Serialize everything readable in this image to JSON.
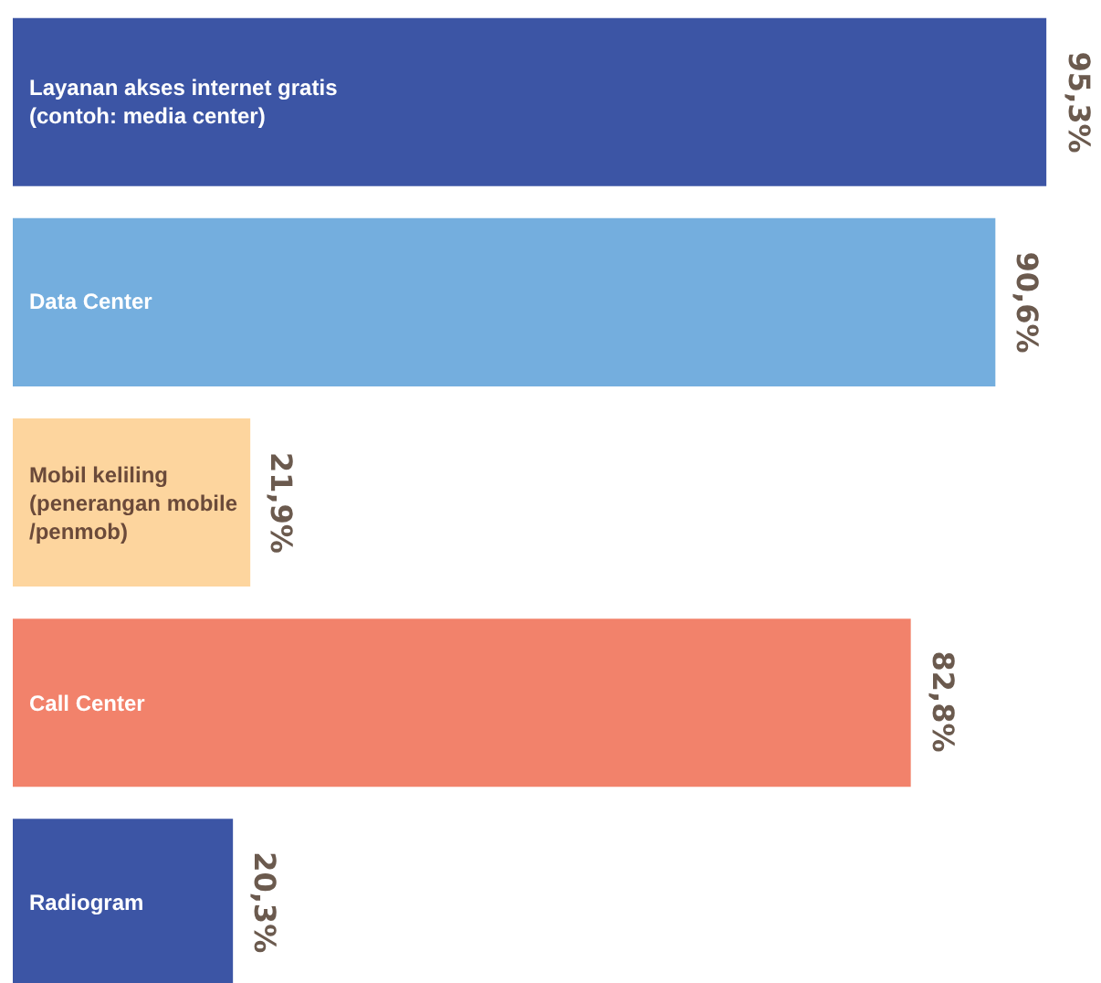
{
  "chart_data": {
    "type": "bar",
    "orientation": "horizontal",
    "categories": [
      "Layanan akses internet gratis\n(contoh: media center)",
      "Data Center",
      "Mobil keliling\n(penerangan mobile\n/penmob)",
      "Call Center",
      "Radiogram"
    ],
    "values": [
      95.3,
      90.6,
      21.9,
      82.8,
      20.3
    ],
    "colors": [
      "#3c55a5",
      "#74aede",
      "#fdd59e",
      "#f2826b",
      "#3c55a5"
    ],
    "value_labels": [
      "95,3%",
      "90,6%",
      "21,9%",
      "82,8%",
      "20,3%"
    ],
    "xlim": [
      0,
      100
    ],
    "tick_labels": false,
    "legend": false
  }
}
